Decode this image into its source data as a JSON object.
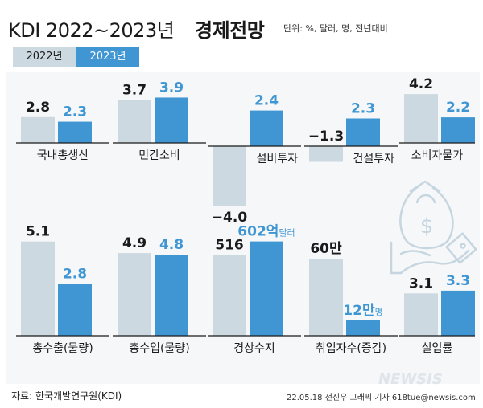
{
  "header": {
    "title_main": "KDI 2022~2023년",
    "title_bold": "경제전망",
    "unit": "단위: %, 달러, 명, 전년대비"
  },
  "legend": [
    "2022년",
    "2023년"
  ],
  "source": "자료: 한국개발연구원(KDI)",
  "credit": "22.05.18 전진우 그래픽 기자 618tue@newsis.com",
  "watermark": "NEWSIS",
  "colors": {
    "y2022": "#cdd9e0",
    "y2023": "#3f96d3",
    "label2022": "#1a1a1a",
    "label2023": "#3f96d3",
    "icon": "#c6d6e0"
  },
  "chart_data": [
    {
      "type": "bar",
      "category": "국내총생산",
      "series": [
        {
          "name": "2022년",
          "values": [
            2.8
          ],
          "label": "2.8"
        },
        {
          "name": "2023년",
          "values": [
            2.3
          ],
          "label": "2.3"
        }
      ]
    },
    {
      "type": "bar",
      "category": "민간소비",
      "series": [
        {
          "name": "2022년",
          "values": [
            3.7
          ],
          "label": "3.7"
        },
        {
          "name": "2023년",
          "values": [
            3.9
          ],
          "label": "3.9"
        }
      ]
    },
    {
      "type": "bar",
      "category": "설비투자",
      "series": [
        {
          "name": "2022년",
          "values": [
            -4.0
          ],
          "label": "−4.0"
        },
        {
          "name": "2023년",
          "values": [
            2.4
          ],
          "label": "2.4"
        }
      ]
    },
    {
      "type": "bar",
      "category": "건설투자",
      "series": [
        {
          "name": "2022년",
          "values": [
            -1.3
          ],
          "label": "−1.3"
        },
        {
          "name": "2023년",
          "values": [
            2.3
          ],
          "label": "2.3"
        }
      ]
    },
    {
      "type": "bar",
      "category": "소비자물가",
      "series": [
        {
          "name": "2022년",
          "values": [
            4.2
          ],
          "label": "4.2"
        },
        {
          "name": "2023년",
          "values": [
            2.2
          ],
          "label": "2.2"
        }
      ]
    },
    {
      "type": "bar",
      "category": "총수출(물량)",
      "series": [
        {
          "name": "2022년",
          "values": [
            5.1
          ],
          "label": "5.1"
        },
        {
          "name": "2023년",
          "values": [
            2.8
          ],
          "label": "2.8"
        }
      ]
    },
    {
      "type": "bar",
      "category": "총수입(물량)",
      "series": [
        {
          "name": "2022년",
          "values": [
            4.9
          ],
          "label": "4.9"
        },
        {
          "name": "2023년",
          "values": [
            4.8
          ],
          "label": "4.8"
        }
      ]
    },
    {
      "type": "bar",
      "category": "경상수지",
      "series": [
        {
          "name": "2022년",
          "values": [
            516
          ],
          "label": "516"
        },
        {
          "name": "2023년",
          "values": [
            602
          ],
          "label": "602억",
          "unit_suffix": "달러"
        }
      ]
    },
    {
      "type": "bar",
      "category": "취업자수(증감)",
      "series": [
        {
          "name": "2022년",
          "values": [
            60
          ],
          "label": "60만"
        },
        {
          "name": "2023년",
          "values": [
            12
          ],
          "label": "12만",
          "unit_suffix": "명"
        }
      ]
    },
    {
      "type": "bar",
      "category": "실업률",
      "series": [
        {
          "name": "2022년",
          "values": [
            3.1
          ],
          "label": "3.1"
        },
        {
          "name": "2023년",
          "values": [
            3.3
          ],
          "label": "3.3"
        }
      ]
    }
  ]
}
